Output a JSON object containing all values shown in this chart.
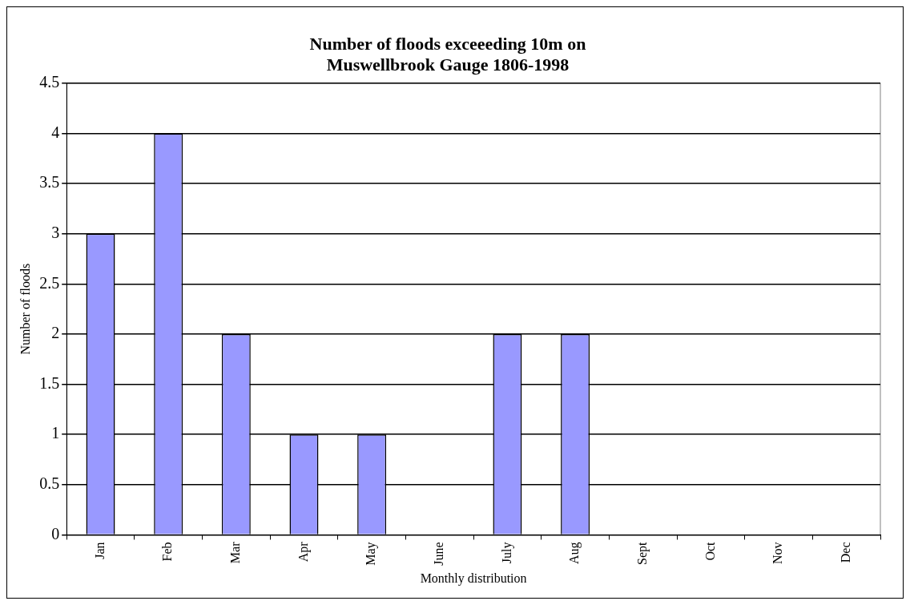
{
  "chart_data": {
    "type": "bar",
    "title": [
      "Number of floods exceeeding 10m on",
      "Muswellbrook Gauge 1806-1998"
    ],
    "xlabel": "Monthly distribution",
    "ylabel": "Number of floods",
    "categories": [
      "Jan",
      "Feb",
      "Mar",
      "Apr",
      "May",
      "June",
      "July",
      "Aug",
      "Sept",
      "Oct",
      "Nov",
      "Dec"
    ],
    "values": [
      3,
      4,
      2,
      1,
      1,
      0,
      2,
      2,
      0,
      0,
      0,
      0
    ],
    "color": "#9999ff",
    "ylim": [
      0,
      4.5
    ],
    "yticks": [
      0,
      0.5,
      1,
      1.5,
      2,
      2.5,
      3,
      3.5,
      4,
      4.5
    ],
    "grid": "y"
  }
}
